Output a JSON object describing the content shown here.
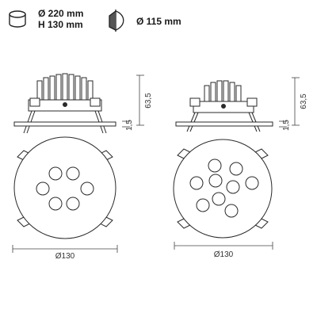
{
  "specs": {
    "diameter": "Ø 220 mm",
    "height": "H 130 mm",
    "cutout": "Ø 115 mm"
  },
  "drawings": {
    "left": {
      "height_dim": "63,5",
      "flange_dim": "1,5",
      "diameter_dim": "Ø130"
    },
    "right": {
      "height_dim": "63,5",
      "flange_dim": "1,5",
      "diameter_dim": "Ø130"
    }
  },
  "colors": {
    "line": "#2a2a2a",
    "fill": "#ffffff"
  },
  "icons": [
    "cylinder-icon",
    "cutout-icon"
  ]
}
